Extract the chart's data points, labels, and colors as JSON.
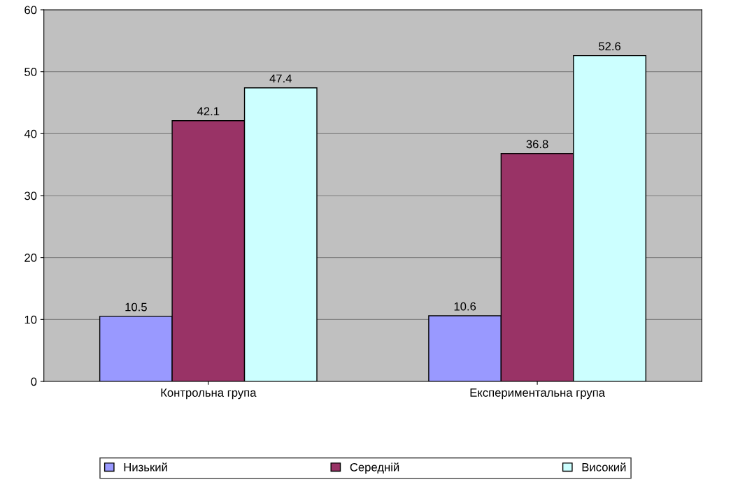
{
  "chart_data": {
    "type": "bar",
    "categories": [
      "Контрольна група",
      "Експериментальна група"
    ],
    "series": [
      {
        "name": "Низький",
        "color": "#9999ff",
        "values": [
          10.5,
          10.6
        ]
      },
      {
        "name": "Середній",
        "color": "#993366",
        "values": [
          42.1,
          36.8
        ]
      },
      {
        "name": "Високий",
        "color": "#ccffff",
        "values": [
          47.4,
          52.6
        ]
      }
    ],
    "ylim": [
      0,
      60
    ],
    "yticks": [
      0,
      10,
      20,
      30,
      40,
      50,
      60
    ],
    "grid": "y",
    "legend": "bottom",
    "data_labels": true
  }
}
